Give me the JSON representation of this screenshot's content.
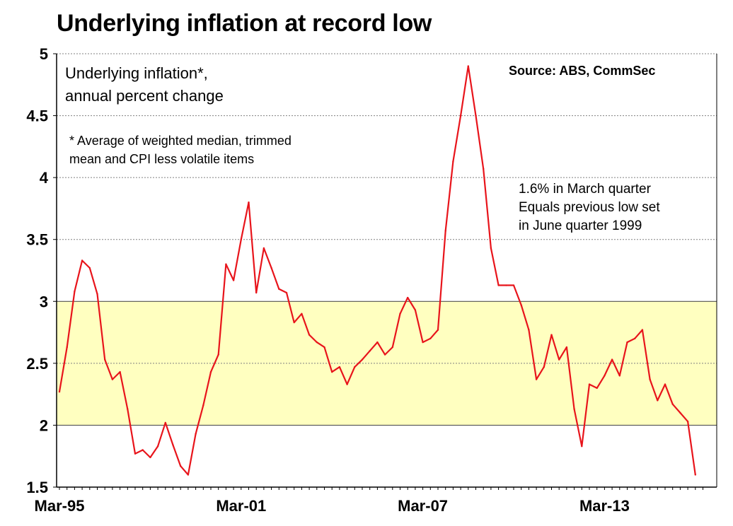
{
  "chart_data": {
    "type": "line",
    "title": "Underlying inflation at record low",
    "subtitle": [
      "Underlying inflation*,",
      "annual percent change"
    ],
    "footnote": [
      "* Average of weighted median, trimmed",
      "mean and CPI less volatile items"
    ],
    "source": "Source: ABS, CommSec",
    "annotation": [
      "1.6% in March quarter",
      "Equals previous low set",
      "in June quarter 1999"
    ],
    "xlabel": "",
    "ylabel": "",
    "ylim": [
      1.5,
      5
    ],
    "yticks": [
      1.5,
      2,
      2.5,
      3,
      3.5,
      4,
      4.5,
      5
    ],
    "ytick_labels": [
      "1.5",
      "2",
      "2.5",
      "3",
      "3.5",
      "4",
      "4.5",
      "5"
    ],
    "xtick_labels": [
      "Mar-95",
      "Mar-01",
      "Mar-07",
      "Mar-13"
    ],
    "xtick_index": [
      0,
      24,
      48,
      72
    ],
    "grid": "horizontal dotted",
    "target_band": [
      2,
      3
    ],
    "colors": {
      "line": "#e8141b",
      "band": "#ffffc0",
      "grid": "#808080"
    },
    "series": [
      {
        "values": [
          2.27,
          2.63,
          3.08,
          3.33,
          3.27,
          3.06,
          2.53,
          2.37,
          2.43,
          2.13,
          1.77,
          1.8,
          1.74,
          1.83,
          2.02,
          1.84,
          1.67,
          1.6,
          1.93,
          2.16,
          2.43,
          2.57,
          3.3,
          3.17,
          3.5,
          3.8,
          3.07,
          3.43,
          3.27,
          3.1,
          3.07,
          2.83,
          2.9,
          2.73,
          2.67,
          2.63,
          2.43,
          2.47,
          2.33,
          2.47,
          2.53,
          2.6,
          2.67,
          2.57,
          2.63,
          2.9,
          3.03,
          2.93,
          2.67,
          2.7,
          2.77,
          3.57,
          4.13,
          4.5,
          4.9,
          4.5,
          4.07,
          3.43,
          3.13,
          3.13,
          3.13,
          2.97,
          2.77,
          2.37,
          2.47,
          2.73,
          2.53,
          2.63,
          2.13,
          1.83,
          2.33,
          2.3,
          2.4,
          2.53,
          2.4,
          2.67,
          2.7,
          2.77,
          2.37,
          2.2,
          2.33,
          2.17,
          2.1,
          2.03,
          1.6
        ]
      }
    ]
  }
}
